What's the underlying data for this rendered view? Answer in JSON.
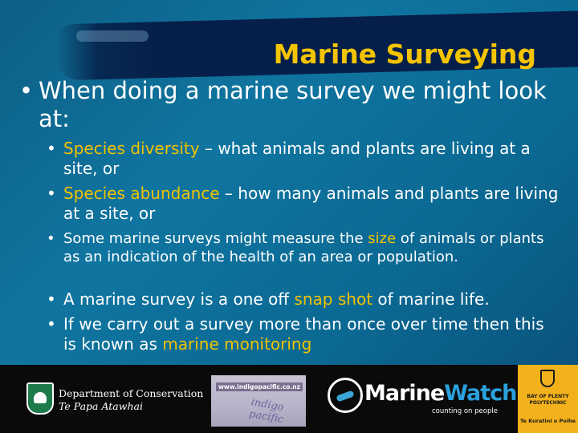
{
  "slide": {
    "title": "Marine Surveying",
    "lead_bullet": "When doing a marine survey we might look at:",
    "bullets": [
      {
        "highlight": "Species diversity",
        "rest": " – what animals and plants are living at a site, or"
      },
      {
        "highlight": "Species abundance",
        "rest": " – how many animals and plants are living at a site, or"
      },
      {
        "pre": "Some marine surveys might measure the ",
        "highlight": "size",
        "post": " of animals or plants as an indication of the health of an area or population."
      },
      {
        "pre": "A marine survey is a one off ",
        "highlight": "snap shot",
        "post": " of marine life."
      },
      {
        "pre": "If we carry out a survey more than once over time then this is known as ",
        "highlight": "marine monitoring"
      }
    ]
  },
  "footer": {
    "doc": {
      "line1": "Department of Conservation",
      "line2": "Te Papa Atawhai"
    },
    "indigo": {
      "url": "www.indigopacific.co.nz",
      "wordmark": "indigo pacific"
    },
    "marinewatch": {
      "name_a": "Marine",
      "name_b": "Watch",
      "tagline": "counting on people"
    },
    "polytechnic": {
      "line1": "BAY OF PLENTY",
      "line2": "POLYTECHNIC",
      "line3": "Te Kuratini o Poihe"
    }
  },
  "colors": {
    "highlight": "#f2c200",
    "title": "#f5c400",
    "background": "#0f75a0",
    "footer": "#0a0a0a"
  },
  "icons": [
    "bullet-icon",
    "doc-logo-icon",
    "marinewatch-logo-icon",
    "polytechnic-logo-icon"
  ]
}
